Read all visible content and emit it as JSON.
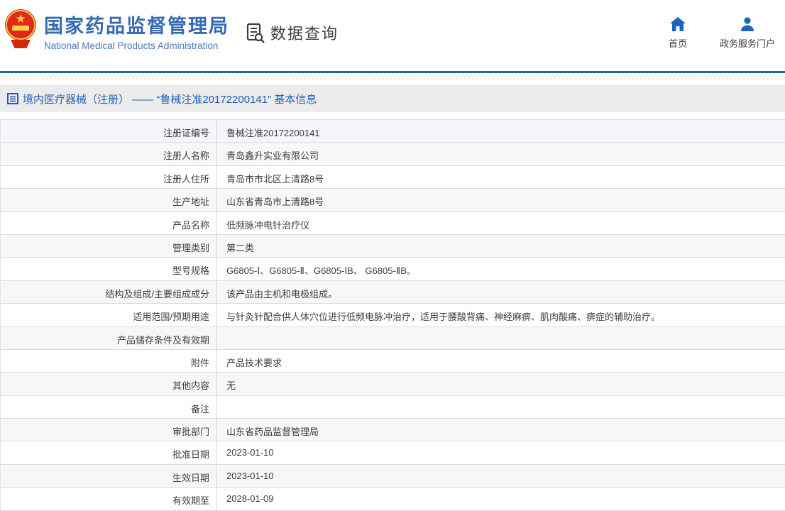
{
  "colors": {
    "brand_blue": "#3569b2",
    "brand_blue_light": "#4a7abe",
    "nav_icon_blue": "#1b66bb",
    "bar_blue": "#1d63ae",
    "title_blue": "#1c62b4",
    "text_dark": "#3b4045",
    "row_stripe": "#f7f7f7",
    "row_first": "#f4f6fb",
    "title_bar_bg": "#ebebeb"
  },
  "header": {
    "logo": {
      "title_zh": "国家药品监督管理局",
      "title_en": "National Medical Products Administration"
    },
    "section_label": "数据查询",
    "nav": [
      {
        "icon": "home-icon",
        "label": "首页"
      },
      {
        "icon": "user-icon",
        "label": "政务服务门户"
      }
    ]
  },
  "page_title": {
    "text": "境内医疗器械（注册） —— “鲁械注准20172200141” 基本信息"
  },
  "table": {
    "rows": [
      {
        "label": "注册证编号",
        "value": "鲁械注准20172200141"
      },
      {
        "label": "注册人名称",
        "value": "青岛鑫升实业有限公司"
      },
      {
        "label": "注册人住所",
        "value": "青岛市市北区上清路8号"
      },
      {
        "label": "生产地址",
        "value": "山东省青岛市上清路8号"
      },
      {
        "label": "产品名称",
        "value": "低频脉冲电针治疗仪"
      },
      {
        "label": "管理类别",
        "value": "第二类"
      },
      {
        "label": "型号规格",
        "value": "G6805-Ⅰ、G6805-Ⅱ、G6805-ⅠB、 G6805-ⅡB。"
      },
      {
        "label": "结构及组成/主要组成成分",
        "value": "该产品由主机和电极组成。"
      },
      {
        "label": "适用范围/预期用途",
        "value": "与针灸针配合供人体穴位进行低频电脉冲治疗，适用于腰酸背痛、神经麻痹、肌肉酸痛、痹症的辅助治疗。"
      },
      {
        "label": "产品储存条件及有效期",
        "value": ""
      },
      {
        "label": "附件",
        "value": "产品技术要求"
      },
      {
        "label": "其他内容",
        "value": "无"
      },
      {
        "label": "备注",
        "value": ""
      },
      {
        "label": "审批部门",
        "value": "山东省药品监督管理局"
      },
      {
        "label": "批准日期",
        "value": "2023-01-10"
      },
      {
        "label": "生效日期",
        "value": "2023-01-10"
      },
      {
        "label": "有效期至",
        "value": "2028-01-09"
      }
    ]
  }
}
